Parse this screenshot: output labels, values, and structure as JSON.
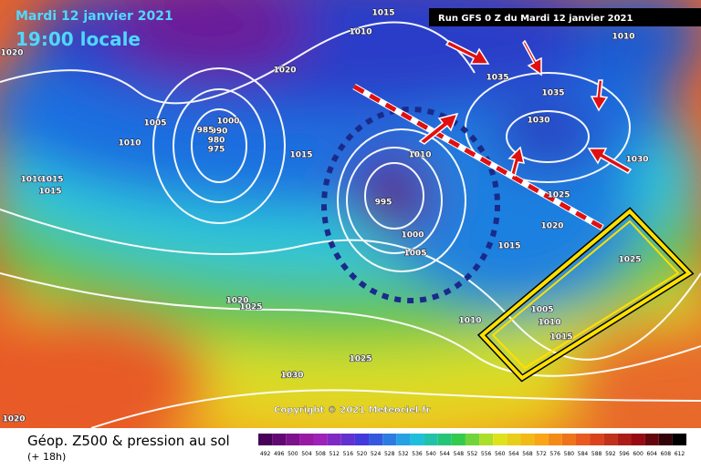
{
  "header": {
    "date": "Mardi 12 janvier 2021",
    "time": "19:00 locale",
    "run": "Run GFS 0 Z du Mardi 12 janvier 2021"
  },
  "isobar_labels": [
    1015,
    1010,
    1020,
    1020,
    1035,
    1035,
    1030,
    1010,
    1005,
    1010,
    1000,
    990,
    985,
    980,
    975,
    1015,
    1010,
    995,
    1000,
    1005,
    1015,
    1020,
    1025,
    1030,
    1025,
    1005,
    1010,
    1015,
    1010,
    1020,
    1025,
    1025,
    1030,
    1020,
    1010,
    1015,
    1015
  ],
  "copyright": "Copyright © 2021 Meteociel.fr",
  "footer": {
    "title": "Géop. Z500 & pression au sol",
    "lead": "(+ 18h)"
  },
  "legend": {
    "values": [
      492,
      496,
      500,
      504,
      508,
      512,
      516,
      520,
      524,
      528,
      532,
      536,
      540,
      544,
      548,
      552,
      556,
      560,
      564,
      568,
      572,
      576,
      580,
      584,
      588,
      592,
      596,
      600,
      604,
      608,
      612
    ]
  }
}
